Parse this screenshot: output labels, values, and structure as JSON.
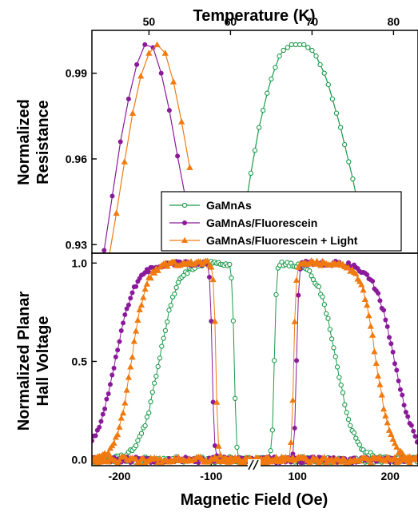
{
  "chart_data": [
    {
      "type": "line",
      "panel": "top",
      "xlabel": "Temperature (K)",
      "ylabel_line1": "Normalized",
      "ylabel_line2": "Resistance",
      "xlim": [
        43,
        83
      ],
      "ylim": [
        0.927,
        1.005
      ],
      "xticks": [
        50,
        60,
        70,
        80
      ],
      "yticks": [
        0.93,
        0.96,
        0.99
      ],
      "ytick_labels": [
        "0.93",
        "0.96",
        "0.99"
      ],
      "legend": {
        "position": "lower-right",
        "entries": [
          "GaMnAs",
          "GaMnAs/Fluorescein",
          "GaMnAs/Fluorescein + Light"
        ]
      },
      "series": [
        {
          "name": "GaMnAs",
          "color": "#1a9a4a",
          "marker": "open-circle",
          "x": [
            62.0,
            62.5,
            63.0,
            63.5,
            64.0,
            64.5,
            65.0,
            65.5,
            66.0,
            66.5,
            67.0,
            67.5,
            68.0,
            68.5,
            69.0,
            69.5,
            70.0,
            70.5,
            71.0,
            71.5,
            72.0,
            72.5,
            73.0,
            73.5,
            74.0,
            74.5,
            75.0,
            75.5,
            76.0
          ],
          "y": [
            0.946,
            0.955,
            0.963,
            0.971,
            0.977,
            0.983,
            0.988,
            0.992,
            0.996,
            0.998,
            0.999,
            1.0,
            1.0,
            1.0,
            1.0,
            0.999,
            0.998,
            0.996,
            0.993,
            0.99,
            0.986,
            0.981,
            0.976,
            0.971,
            0.965,
            0.959,
            0.953,
            0.946,
            0.939
          ]
        },
        {
          "name": "GaMnAs/Fluorescein",
          "color": "#8b1a9a",
          "marker": "filled-circle",
          "x": [
            44.5,
            45.5,
            46.5,
            47.5,
            48.5,
            49.5,
            50.5,
            51.5,
            52.5,
            53.5,
            54.5
          ],
          "y": [
            0.928,
            0.947,
            0.966,
            0.981,
            0.993,
            1.0,
            0.999,
            0.99,
            0.977,
            0.961,
            0.946
          ]
        },
        {
          "name": "GaMnAs/Fluorescein + Light",
          "color": "#f07a10",
          "marker": "triangle",
          "x": [
            45.0,
            46.0,
            47.0,
            48.0,
            49.0,
            50.0,
            51.0,
            52.0,
            53.0,
            54.0,
            55.0
          ],
          "y": [
            0.924,
            0.941,
            0.959,
            0.976,
            0.989,
            0.997,
            1.0,
            0.997,
            0.987,
            0.973,
            0.957
          ]
        }
      ]
    },
    {
      "type": "line",
      "panel": "bottom",
      "xlabel": "Magnetic Field (Oe)",
      "ylabel_line1": "Normalized Planar",
      "ylabel_line2": "Hall Voltage",
      "ylim": [
        -0.03,
        1.05
      ],
      "yticks": [
        0.0,
        0.5,
        1.0
      ],
      "ytick_labels": [
        "0.0",
        "0.5",
        "1.0"
      ],
      "axis_break": "//",
      "x_segments": [
        {
          "range": [
            -230,
            -55
          ],
          "ticks": [
            -200,
            -100
          ],
          "tick_labels": [
            "-200",
            "-100"
          ]
        },
        {
          "range": [
            55,
            230
          ],
          "ticks": [
            100,
            200
          ],
          "tick_labels": [
            "100",
            "200"
          ]
        }
      ],
      "series": [
        {
          "name": "GaMnAs",
          "color": "#1a9a4a",
          "marker": "open-circle",
          "left_edge": -157,
          "left_width": 10,
          "left_drop": -75,
          "right_edge": 142,
          "right_width": 10,
          "right_rise": 75
        },
        {
          "name": "GaMnAs/Fluorescein",
          "color": "#8b1a9a",
          "marker": "filled-circle",
          "left_edge": -205,
          "left_width": 11,
          "left_drop": -99,
          "right_edge": 205,
          "right_width": 11,
          "right_rise": 99
        },
        {
          "name": "GaMnAs/Fluorescein + Light",
          "color": "#f07a10",
          "marker": "triangle",
          "left_edge": -187,
          "left_width": 8,
          "left_drop": -95,
          "right_edge": 185,
          "right_width": 8,
          "right_rise": 96
        }
      ]
    }
  ]
}
